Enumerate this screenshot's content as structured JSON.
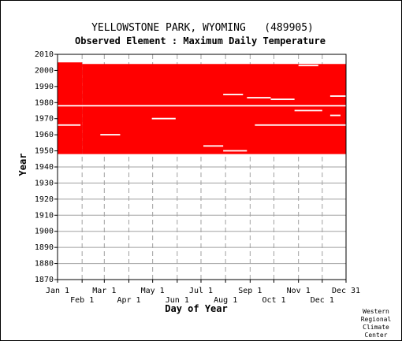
{
  "chart_data": {
    "type": "heatmap",
    "title": "YELLOWSTONE PARK, WYOMING   (489905)",
    "subtitle": "Observed Element : Maximum Daily Temperature",
    "xlabel": "Day of Year",
    "ylabel": "Year",
    "xlim": [
      1,
      365
    ],
    "ylim": [
      1870,
      2010
    ],
    "y_ticks": [
      1870,
      1880,
      1890,
      1900,
      1910,
      1920,
      1930,
      1940,
      1950,
      1960,
      1970,
      1980,
      1990,
      2000,
      2010
    ],
    "x_ticks_upper": [
      {
        "label": "Jan 1",
        "day": 1
      },
      {
        "label": "Mar 1",
        "day": 60
      },
      {
        "label": "May 1",
        "day": 121
      },
      {
        "label": "Jul 1",
        "day": 182
      },
      {
        "label": "Sep 1",
        "day": 244
      },
      {
        "label": "Nov 1",
        "day": 305
      },
      {
        "label": "Dec 31",
        "day": 365
      }
    ],
    "x_ticks_lower": [
      {
        "label": "Feb 1",
        "day": 32
      },
      {
        "label": "Apr 1",
        "day": 91
      },
      {
        "label": "Jun 1",
        "day": 152
      },
      {
        "label": "Aug 1",
        "day": 213
      },
      {
        "label": "Oct 1",
        "day": 274
      },
      {
        "label": "Dec 1",
        "day": 335
      }
    ],
    "grid": true,
    "data_color": "#ff0000",
    "data_blocks": [
      {
        "day_start": 1,
        "day_end": 32,
        "year_start": 1948,
        "year_end": 2005
      },
      {
        "day_start": 32,
        "day_end": 365,
        "year_start": 1948,
        "year_end": 2004
      }
    ],
    "missing_rows": [
      {
        "year": 1978,
        "day_start": 1,
        "day_end": 365
      },
      {
        "year": 1966,
        "day_start": 1,
        "day_end": 30
      },
      {
        "year": 1966,
        "day_start": 250,
        "day_end": 365
      },
      {
        "year": 1960,
        "day_start": 55,
        "day_end": 80
      },
      {
        "year": 1970,
        "day_start": 120,
        "day_end": 150
      },
      {
        "year": 1953,
        "day_start": 185,
        "day_end": 210
      },
      {
        "year": 1950,
        "day_start": 210,
        "day_end": 240
      },
      {
        "year": 1985,
        "day_start": 210,
        "day_end": 235
      },
      {
        "year": 1983,
        "day_start": 240,
        "day_end": 270
      },
      {
        "year": 1982,
        "day_start": 270,
        "day_end": 300
      },
      {
        "year": 2003,
        "day_start": 305,
        "day_end": 330
      },
      {
        "year": 1975,
        "day_start": 300,
        "day_end": 335
      },
      {
        "year": 1984,
        "day_start": 345,
        "day_end": 365
      },
      {
        "year": 1972,
        "day_start": 345,
        "day_end": 358
      }
    ],
    "credit": [
      "Western",
      "Regional",
      "Climate",
      "Center"
    ]
  }
}
